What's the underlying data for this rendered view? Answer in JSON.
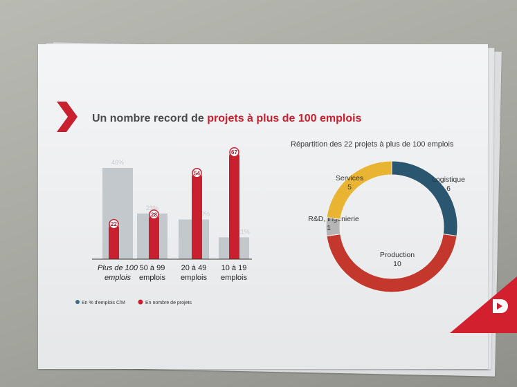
{
  "title": {
    "part1": "Un nombre record de ",
    "part2": "projets à plus de 100 emplois"
  },
  "colors": {
    "accent_red": "#c8202f",
    "grey_bar": "#c3c8cc",
    "logistique": "#2a5670",
    "production": "#c4372c",
    "rd": "#b5b5b5",
    "services": "#e8b431"
  },
  "chart_data": [
    {
      "type": "bar",
      "categories": [
        "Plus de 100 emplois",
        "50 à 99 emplois",
        "20 à 49 emplois",
        "10 à 19 emplois"
      ],
      "category_lines": [
        [
          "Plus de 100",
          "emplois"
        ],
        [
          "50 à 99",
          "emplois"
        ],
        [
          "20 à 49",
          "emplois"
        ],
        [
          "10 à 19",
          "emplois"
        ]
      ],
      "series": [
        {
          "name": "En % d'emplois C/M",
          "values": [
            46,
            23,
            20,
            11
          ],
          "labels": [
            "46%",
            "23%",
            "20%",
            "11%"
          ],
          "color": "#c3c8cc",
          "legend_color": "#3b6a86"
        },
        {
          "name": "En nombre de projets",
          "values": [
            22,
            28,
            54,
            67
          ],
          "labels": [
            "22",
            "28",
            "54",
            "67"
          ],
          "color": "#c8202f"
        }
      ],
      "legend": [
        "En % d'emplois C/M",
        "En nombre de projets"
      ],
      "legend_placement": "bottom-left",
      "grid": false
    },
    {
      "type": "pie",
      "donut": true,
      "title": "Répartition des 22 projets à plus de 100 emplois",
      "slices": [
        {
          "label": "Logistique",
          "value": 6,
          "value_label": "6",
          "color": "#2a5670"
        },
        {
          "label": "Production",
          "value": 10,
          "value_label": "10",
          "color": "#c4372c"
        },
        {
          "label": "R&D, ingénierie",
          "value": 1,
          "value_label": "1",
          "color": "#b5b5b5"
        },
        {
          "label": "Services",
          "value": 5,
          "value_label": "5",
          "color": "#e8b431"
        }
      ]
    }
  ]
}
